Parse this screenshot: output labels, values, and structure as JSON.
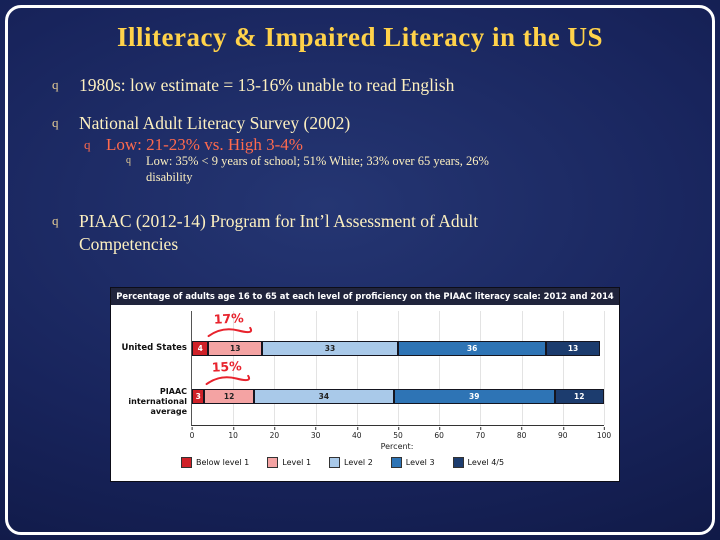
{
  "slide": {
    "title": "Illiteracy & Impaired Literacy in the US",
    "bullets": [
      {
        "marker": "q",
        "level": 1,
        "lines": [
          "1980s: low estimate = 13-16% unable to read English"
        ]
      },
      {
        "marker": "q",
        "level": 1,
        "lines": [
          "National Adult Literacy Survey (2002)"
        ]
      },
      {
        "marker": "q",
        "level": 2,
        "lines": [
          "Low: 21-23%  vs. High 3-4%"
        ]
      },
      {
        "marker": "q",
        "level": 3,
        "lines": [
          "Low: 35% < 9 years of school; 51% White; 33% over 65 years, 26%",
          "disability"
        ]
      },
      {
        "marker": "q",
        "level": 1,
        "lines": [
          "PIAAC (2012-14) Program for Int’l Assessment of Adult",
          "Competencies"
        ]
      }
    ],
    "colors": {
      "background": "#18245c",
      "title": "#ffd24a",
      "body": "#fdf0c0",
      "highlight": "#ff6a4d",
      "frame": "#ffffff"
    }
  },
  "chart_data": {
    "type": "bar",
    "orientation": "horizontal",
    "stacked": true,
    "title": "Percentage of adults age 16 to 65 at each level of proficiency on the PIAAC literacy scale: 2012 and 2014",
    "categories": [
      "United States",
      "PIAAC international average"
    ],
    "row_labels": [
      [
        "United States"
      ],
      [
        "PIAAC",
        "international average"
      ]
    ],
    "series": [
      {
        "name": "Below level 1",
        "values": [
          4,
          3
        ]
      },
      {
        "name": "Level 1",
        "values": [
          13,
          12
        ]
      },
      {
        "name": "Level 2",
        "values": [
          33,
          34
        ]
      },
      {
        "name": "Level 3",
        "values": [
          36,
          39
        ]
      },
      {
        "name": "Level 4/5",
        "values": [
          13,
          12
        ]
      }
    ],
    "colors": [
      "#cf2128",
      "#f4a3a3",
      "#a9c9e9",
      "#2e74b5",
      "#1c3c6e"
    ],
    "label_text_colors": [
      "#ffffff",
      "#222222",
      "#222222",
      "#ffffff",
      "#ffffff"
    ],
    "xlim": [
      0,
      100
    ],
    "xticks": [
      0,
      10,
      20,
      30,
      40,
      50,
      60,
      70,
      80,
      90,
      100
    ],
    "xlabel": "Percent:",
    "grid": true,
    "legend_position": "bottom",
    "annotation_color": "#e8232d",
    "annotations": [
      {
        "text": "17%",
        "row": "United States",
        "color": "#e8232d"
      },
      {
        "text": "15%",
        "row": "PIAAC international average",
        "color": "#e8232d"
      }
    ]
  }
}
